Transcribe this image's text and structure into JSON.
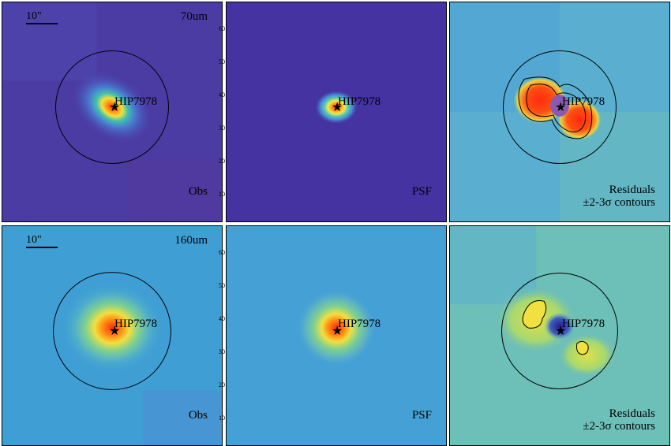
{
  "scale_bar": {
    "label": "10\""
  },
  "target": "HIP7978",
  "colors": {
    "panel_border": "#000000",
    "dark_blue_bg": "#4433a0",
    "light_blue_bg": "#3f9fd4",
    "core_red": "#ff2a10"
  },
  "rows": [
    {
      "band": "70um",
      "panels": [
        {
          "id": "obs",
          "label": "Obs",
          "scale": true,
          "band_label": true,
          "y_ticks": []
        },
        {
          "id": "psf",
          "label": "PSF",
          "y_ticks": [
            "60",
            "50",
            "40",
            "30",
            "20",
            "10"
          ]
        },
        {
          "id": "res",
          "label": "Residuals",
          "label2": "±2-3σ contours",
          "y_ticks": []
        }
      ]
    },
    {
      "band": "160um",
      "panels": [
        {
          "id": "obs",
          "label": "Obs",
          "scale": true,
          "band_label": true,
          "y_ticks": []
        },
        {
          "id": "psf",
          "label": "PSF",
          "y_ticks": [
            "60",
            "50",
            "40",
            "30",
            "20",
            "10"
          ]
        },
        {
          "id": "res",
          "label": "Residuals",
          "label2": "±2-3σ contours",
          "y_ticks": []
        }
      ]
    }
  ]
}
